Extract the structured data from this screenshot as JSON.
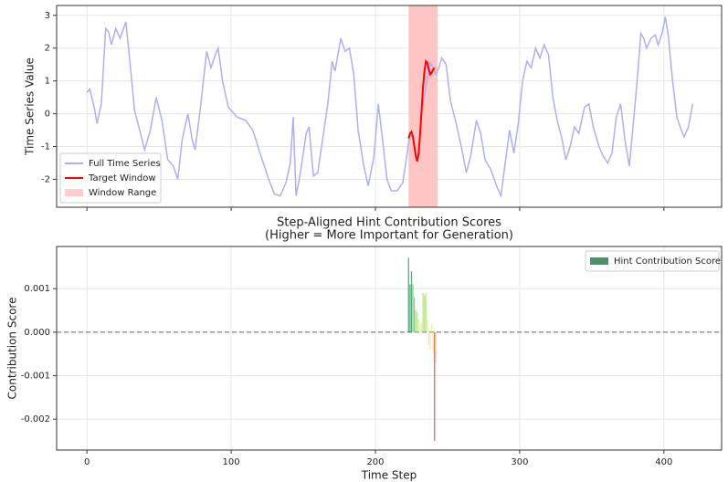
{
  "chart_data": [
    {
      "type": "line",
      "ylabel": "Time Series Value",
      "xlim": [
        -21,
        440
      ],
      "ylim": [
        -2.85,
        3.3
      ],
      "yticks": [
        -2,
        -1,
        0,
        1,
        2,
        3
      ],
      "grid": true,
      "legend": "lower left",
      "span": {
        "name": "Window Range",
        "x": [
          223,
          243
        ],
        "color": "#ffc4c4"
      },
      "series": [
        {
          "name": "Full Time Series",
          "color": "#aeaef2",
          "x": [
            0,
            2,
            5,
            7,
            10,
            13,
            15,
            17,
            20,
            23,
            27,
            30,
            33,
            36,
            40,
            44,
            48,
            52,
            56,
            60,
            63,
            66,
            70,
            73,
            75,
            79,
            83,
            86,
            89,
            91,
            94,
            98,
            104,
            110,
            115,
            120,
            126,
            130,
            134,
            138,
            141,
            143,
            145,
            148,
            152,
            154,
            157,
            160,
            164,
            167,
            170,
            172,
            176,
            179,
            182,
            185,
            188,
            192,
            195,
            199,
            202,
            205,
            208,
            211,
            215,
            219,
            222,
            224,
            226,
            228,
            230,
            232,
            235,
            238,
            240,
            242,
            244,
            246,
            249,
            252,
            256,
            260,
            263,
            266,
            270,
            273,
            276,
            280,
            284,
            287,
            290,
            293,
            296,
            299,
            302,
            305,
            308,
            311,
            314,
            317,
            320,
            323,
            326,
            329,
            332,
            335,
            338,
            341,
            345,
            348,
            351,
            355,
            358,
            361,
            364,
            367,
            370,
            373,
            376,
            379,
            382,
            384,
            386,
            388,
            391,
            394,
            396,
            399,
            401,
            403,
            406,
            409,
            412,
            414,
            417,
            420
          ],
          "values": [
            0.65,
            0.75,
            0.2,
            -0.3,
            0.3,
            2.6,
            2.5,
            2.1,
            2.6,
            2.3,
            2.8,
            1.5,
            0.1,
            -0.4,
            -1.1,
            -0.5,
            0.5,
            -0.2,
            -1.4,
            -1.6,
            -2.0,
            -0.8,
            0.0,
            -0.8,
            -1.1,
            0.3,
            1.9,
            1.4,
            1.8,
            2.0,
            1.0,
            0.2,
            -0.1,
            -0.2,
            -0.5,
            -1.2,
            -2.0,
            -2.45,
            -2.5,
            -2.1,
            -1.5,
            -0.1,
            -2.5,
            -1.8,
            -0.6,
            -0.4,
            -1.9,
            -1.8,
            -0.6,
            0.3,
            1.6,
            1.3,
            2.3,
            1.9,
            2.0,
            1.2,
            -0.5,
            -1.6,
            -2.2,
            -1.3,
            0.3,
            -0.8,
            -2.0,
            -2.35,
            -2.35,
            -2.1,
            -1.2,
            -0.6,
            -0.7,
            -1.3,
            -1.2,
            0.1,
            0.8,
            1.55,
            1.4,
            1.2,
            1.4,
            1.7,
            1.5,
            0.4,
            -0.3,
            -1.1,
            -1.8,
            -1.3,
            -0.2,
            -0.6,
            -1.4,
            -1.7,
            -2.2,
            -2.5,
            -1.5,
            -0.5,
            -1.2,
            -0.3,
            1.0,
            1.6,
            1.4,
            2.0,
            1.7,
            2.1,
            1.8,
            0.5,
            -0.2,
            -0.7,
            -1.4,
            -1.0,
            -0.4,
            -0.6,
            0.2,
            0.3,
            -0.4,
            -1.0,
            -1.3,
            -1.5,
            -1.2,
            -0.1,
            0.3,
            -0.8,
            -1.6,
            -0.2,
            1.3,
            2.45,
            2.3,
            2.0,
            2.3,
            2.4,
            2.1,
            2.5,
            2.95,
            2.4,
            1.0,
            -0.1,
            -0.5,
            -0.7,
            -0.4,
            0.3
          ]
        },
        {
          "name": "Target Window",
          "color": "#ff0000",
          "x": [
            223,
            224,
            225,
            226,
            227,
            228,
            229,
            230,
            231,
            232,
            233,
            234,
            235,
            236,
            237,
            238,
            239,
            240,
            241
          ],
          "values": [
            -0.75,
            -0.6,
            -0.55,
            -0.7,
            -1.0,
            -1.3,
            -1.45,
            -1.2,
            -0.6,
            0.1,
            0.8,
            1.3,
            1.6,
            1.55,
            1.35,
            1.2,
            1.25,
            1.35,
            1.4
          ]
        }
      ]
    },
    {
      "type": "bar",
      "title": [
        "Step-Aligned Hint Contribution Scores",
        "(Higher = More Important for Generation)"
      ],
      "xlabel": "Time Step",
      "ylabel": "Contribution Score",
      "xlim": [
        -21,
        440
      ],
      "xticks": [
        0,
        100,
        200,
        300,
        400
      ],
      "ylim": [
        -0.00271,
        0.00197
      ],
      "yticks": [
        -0.002,
        -0.001,
        {
          "value": 0,
          "label": "0.000"
        },
        0.001
      ],
      "grid": true,
      "legend": "upper right",
      "series": [
        {
          "name": "Hint Contribution Score",
          "color": "#2e7d4f",
          "x": [
            223,
            224,
            225,
            226,
            227,
            228,
            229,
            230,
            231,
            232,
            233,
            234,
            235,
            236,
            237,
            238,
            239,
            240,
            241,
            242
          ],
          "values": [
            0.00171,
            0.0011,
            0.0014,
            0.0011,
            0.0008,
            0.0005,
            0.00045,
            0.0003,
            0.0002,
            0.0002,
            0.0009,
            0.00085,
            0.0009,
            0.0003,
            -0.0003,
            -0.0004,
            0.0002,
            -0.0005,
            -0.0025,
            -0.0007
          ],
          "colors": [
            "#1a9850",
            "#1a9850",
            "#1a9850",
            "#66bd63",
            "#66bd63",
            "#a6d96a",
            "#a6d96a",
            "#d9ef8b",
            "#d9ef8b",
            "#d9ef8b",
            "#a6d96a",
            "#a6d96a",
            "#a6d96a",
            "#d9ef8b",
            "#fee08b",
            "#fee08b",
            "#d9ef8b",
            "#fdd78a",
            "#d73027",
            "#fdd78a"
          ]
        }
      ]
    }
  ]
}
